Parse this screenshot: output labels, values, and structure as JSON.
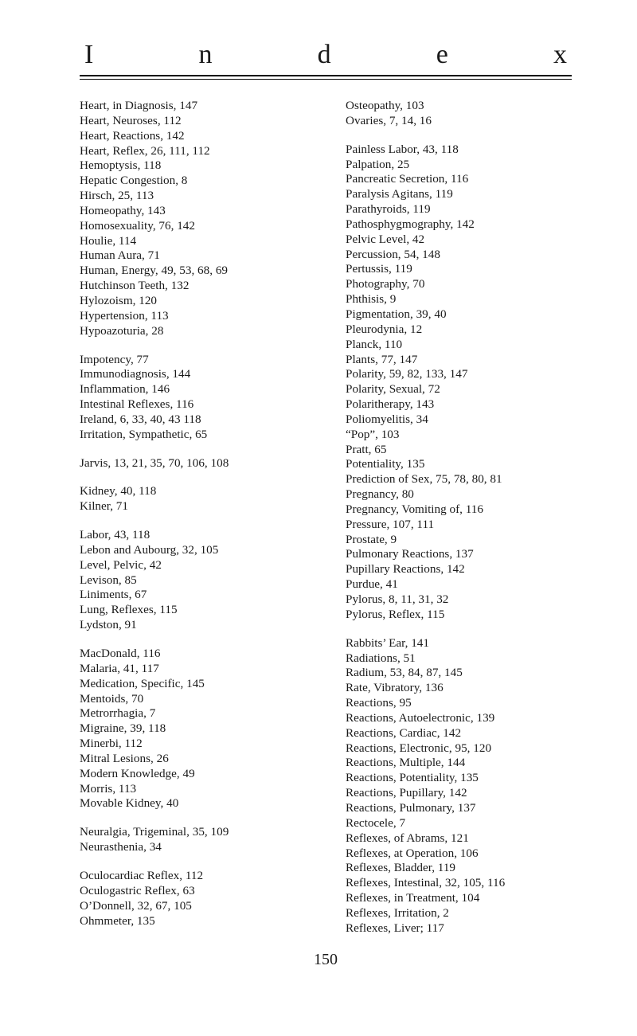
{
  "header": {
    "l1": "I",
    "l2": "n",
    "l3": "d",
    "l4": "e",
    "l5": "x"
  },
  "left": [
    [
      "Heart, in Diagnosis, 147",
      "Heart, Neuroses, 112",
      "Heart, Reactions, 142",
      "Heart, Reflex, 26, 111, 112",
      "Hemoptysis, 118",
      "Hepatic Congestion, 8",
      "Hirsch, 25, 113",
      "Homeopathy, 143",
      "Homosexuality, 76, 142",
      "Houlie, 114",
      "Human Aura, 71",
      "Human, Energy, 49, 53, 68, 69",
      "Hutchinson Teeth, 132",
      "Hylozoism, 120",
      "Hypertension, 113",
      "Hypoazoturia, 28"
    ],
    [
      "Impotency, 77",
      "Immunodiagnosis, 144",
      "Inflammation, 146",
      "Intestinal Reflexes, 116",
      "Ireland, 6, 33, 40, 43 118",
      "Irritation, Sympathetic, 65"
    ],
    [
      "Jarvis, 13, 21, 35, 70, 106, 108"
    ],
    [
      "Kidney, 40, 118",
      "Kilner, 71"
    ],
    [
      "Labor, 43, 118",
      "Lebon and Aubourg, 32, 105",
      "Level, Pelvic, 42",
      "Levison, 85",
      "Liniments, 67",
      "Lung, Reflexes, 115",
      "Lydston, 91"
    ],
    [
      "MacDonald, 116",
      "Malaria, 41, 117",
      "Medication, Specific, 145",
      "Mentoids, 70",
      "Metrorrhagia, 7",
      "Migraine, 39, 118",
      "Minerbi, 112",
      "Mitral Lesions, 26",
      "Modern Knowledge, 49",
      "Morris, 113",
      "Movable Kidney, 40"
    ],
    [
      "Neuralgia, Trigeminal, 35, 109",
      "Neurasthenia, 34"
    ],
    [
      "Oculocardiac Reflex, 112",
      "Oculogastric Reflex, 63",
      "O’Donnell, 32, 67, 105",
      "Ohmmeter, 135"
    ]
  ],
  "right": [
    [
      "Osteopathy, 103",
      "Ovaries, 7, 14, 16"
    ],
    [
      "Painless Labor, 43, 118",
      "Palpation, 25",
      "Pancreatic Secretion, 116",
      "Paralysis Agitans, 119",
      "Parathyroids, 119",
      "Pathosphygmography, 142",
      "Pelvic Level, 42",
      "Percussion, 54, 148",
      "Pertussis, 119",
      "Photography, 70",
      "Phthisis, 9",
      "Pigmentation, 39, 40",
      "Pleurodynia, 12",
      "Planck, 110",
      "Plants, 77, 147",
      "Polarity, 59, 82, 133, 147",
      "Polarity, Sexual, 72",
      "Polaritherapy, 143",
      "Poliomyelitis, 34",
      "“Pop”, 103",
      "Pratt, 65",
      "Potentiality, 135",
      "Prediction of Sex, 75, 78, 80, 81",
      "Pregnancy, 80",
      "Pregnancy, Vomiting of, 116",
      "Pressure, 107, 111",
      "Prostate, 9",
      "Pulmonary Reactions, 137",
      "Pupillary Reactions, 142",
      "Purdue, 41",
      "Pylorus, 8, 11, 31, 32",
      "Pylorus, Reflex, 115"
    ],
    [
      "Rabbits’ Ear, 141",
      "Radiations, 51",
      "Radium, 53, 84, 87, 145",
      "Rate, Vibratory, 136",
      "Reactions, 95",
      "Reactions, Autoelectronic, 139",
      "Reactions, Cardiac, 142",
      "Reactions, Electronic, 95, 120",
      "Reactions, Multiple, 144",
      "Reactions, Potentiality, 135",
      "Reactions, Pupillary, 142",
      "Reactions, Pulmonary, 137",
      "Rectocele, 7",
      "Reflexes, of Abrams, 121",
      "Reflexes, at Operation, 106",
      "Reflexes, Bladder, 119",
      "Reflexes, Intestinal, 32, 105, 116",
      "Reflexes, in Treatment, 104",
      "Reflexes, Irritation, 2",
      "Reflexes, Liver; 117"
    ]
  ],
  "pageNumber": "150"
}
